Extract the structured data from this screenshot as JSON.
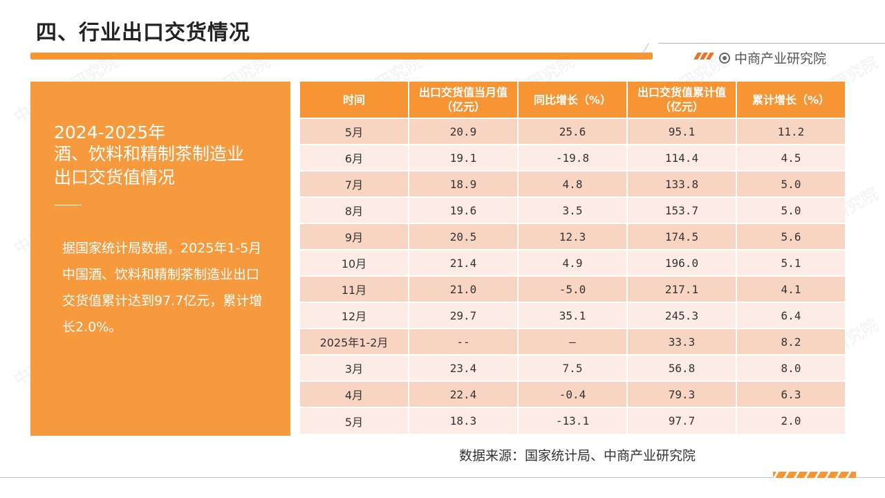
{
  "page": {
    "title": "四、行业出口交货情况",
    "brand": "中商产业研究院",
    "source": "数据来源：国家统计局、中商产业研究院",
    "watermark": "中商产业研究院"
  },
  "left_panel": {
    "year_range": "2024-2025年",
    "subtitle_line1": "酒、饮料和精制茶制造业",
    "subtitle_line2": "出口交货值情况",
    "body": "据国家统计局数据，2025年1-5月中国酒、饮料和精制茶制造业出口交货值累计达到97.7亿元，累计增长2.0%。"
  },
  "table": {
    "headers": [
      "时间",
      "出口交货值当月值（亿元）",
      "同比增长（%）",
      "出口交货值累计值（亿元）",
      "累计增长（%）"
    ],
    "rows": [
      [
        "5月",
        "20.9",
        "25.6",
        "95.1",
        "11.2"
      ],
      [
        "6月",
        "19.1",
        "-19.8",
        "114.4",
        "4.5"
      ],
      [
        "7月",
        "18.9",
        "4.8",
        "133.8",
        "5.0"
      ],
      [
        "8月",
        "19.6",
        "3.5",
        "153.7",
        "5.0"
      ],
      [
        "9月",
        "20.5",
        "12.3",
        "174.5",
        "5.6"
      ],
      [
        "10月",
        "21.4",
        "4.9",
        "196.0",
        "5.1"
      ],
      [
        "11月",
        "21.0",
        "-5.0",
        "217.1",
        "4.1"
      ],
      [
        "12月",
        "29.7",
        "35.1",
        "245.3",
        "6.4"
      ],
      [
        "2025年1-2月",
        "--",
        "—",
        "33.3",
        "8.2"
      ],
      [
        "3月",
        "23.4",
        "7.5",
        "56.8",
        "8.0"
      ],
      [
        "4月",
        "22.4",
        "-0.4",
        "79.3",
        "6.3"
      ],
      [
        "5月",
        "18.3",
        "-13.1",
        "97.7",
        "2.0"
      ]
    ]
  },
  "colors": {
    "accent": "#f79433",
    "row_odd": "#f8d4c3",
    "row_even": "#fcece5"
  }
}
